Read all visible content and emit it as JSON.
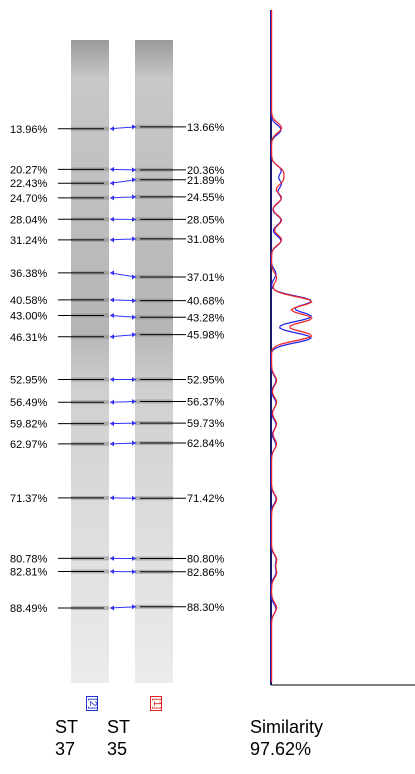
{
  "left_percentages": [
    "13.96%",
    "20.27%",
    "22.43%",
    "24.70%",
    "28.04%",
    "31.24%",
    "36.38%",
    "40.58%",
    "43.00%",
    "46.31%",
    "52.95%",
    "56.49%",
    "59.82%",
    "62.97%",
    "71.37%",
    "80.78%",
    "82.81%",
    "88.49%"
  ],
  "right_percentages": [
    "13.66%",
    "20.36%",
    "21.89%",
    "24.55%",
    "28.05%",
    "31.08%",
    "37.01%",
    "40.68%",
    "43.28%",
    "45.98%",
    "52.95%",
    "56.37%",
    "59.73%",
    "62.84%",
    "71.42%",
    "80.80%",
    "82.86%",
    "88.30%"
  ],
  "lane_tags": {
    "left": "[2]",
    "right": "[1]",
    "left_color": "#2233cc",
    "right_color": "#dd2222"
  },
  "captions": {
    "lane1_label": "ST",
    "lane1_value": "37",
    "lane2_label": "ST",
    "lane2_value": "35",
    "similarity_label": "Similarity",
    "similarity_value": "97.62%"
  },
  "colors": {
    "profile_blue": "#2222ee",
    "profile_red": "#ee2222",
    "axis": "#1a1a66",
    "arrow": "#3333ff"
  }
}
